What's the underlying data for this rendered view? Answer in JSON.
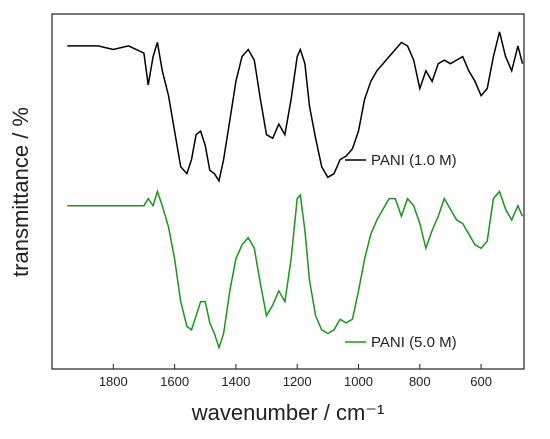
{
  "chart_data": {
    "type": "line",
    "xlabel": "wavenumber / cm⁻¹",
    "ylabel": "transmittance / %",
    "xlim": [
      2000,
      460
    ],
    "ylim": [
      0,
      100
    ],
    "xticks": [
      1800,
      1600,
      1400,
      1200,
      1000,
      800,
      600
    ],
    "x": [
      1950,
      1900,
      1850,
      1800,
      1750,
      1700,
      1686,
      1670,
      1656,
      1640,
      1620,
      1600,
      1580,
      1560,
      1545,
      1530,
      1515,
      1500,
      1485,
      1470,
      1455,
      1440,
      1420,
      1400,
      1380,
      1360,
      1340,
      1320,
      1300,
      1280,
      1260,
      1240,
      1220,
      1200,
      1190,
      1175,
      1160,
      1140,
      1120,
      1100,
      1080,
      1060,
      1040,
      1020,
      1000,
      980,
      960,
      940,
      920,
      900,
      880,
      860,
      840,
      820,
      800,
      780,
      760,
      740,
      720,
      700,
      680,
      660,
      640,
      620,
      600,
      580,
      560,
      540,
      520,
      500,
      480,
      465
    ],
    "series": [
      {
        "name": "PANI (1.0 M)",
        "color": "#000000",
        "values": [
          91,
          91,
          91,
          90,
          91,
          89,
          80,
          88,
          92,
          84,
          77,
          67,
          57,
          55,
          59,
          66,
          67,
          63,
          56,
          55,
          53,
          59,
          70,
          81,
          88,
          90,
          87,
          76,
          66,
          65,
          69,
          66,
          76,
          88,
          90,
          86,
          74,
          65,
          57,
          54,
          55,
          59,
          60,
          62,
          67,
          76,
          81,
          84,
          86,
          88,
          90,
          92,
          91,
          87,
          79,
          84,
          81,
          86,
          87,
          86,
          87,
          88,
          84,
          81,
          77,
          79,
          88,
          95,
          88,
          84,
          91,
          86
        ]
      },
      {
        "name": "PANI (5.0 M)",
        "color": "#1a961a",
        "values": [
          46,
          46,
          46,
          46,
          46,
          46,
          48,
          46,
          50,
          46,
          40,
          31,
          19,
          12,
          11,
          15,
          19,
          19,
          13,
          10,
          6,
          10,
          22,
          31,
          35,
          37,
          34,
          24,
          15,
          18,
          22,
          19,
          31,
          48,
          49,
          39,
          25,
          15,
          11,
          10,
          11,
          14,
          13,
          14,
          22,
          31,
          38,
          42,
          45,
          48,
          48,
          43,
          48,
          46,
          41,
          34,
          39,
          43,
          48,
          45,
          42,
          41,
          38,
          35,
          34,
          36,
          48,
          50,
          45,
          42,
          46,
          43
        ]
      }
    ]
  }
}
